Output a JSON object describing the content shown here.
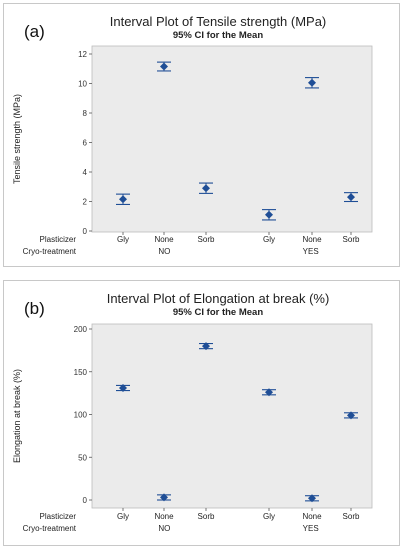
{
  "chart_data": [
    {
      "type": "scatter",
      "panel_label": "(a)",
      "title": "Interval Plot of Tensile strength (MPa)",
      "subtitle": "95% CI for the Mean",
      "ylabel": "Tensile strength (MPa)",
      "ylim": [
        0,
        12
      ],
      "yticks": [
        0,
        2,
        4,
        6,
        8,
        10,
        12
      ],
      "row_labels": [
        "Plasticizer",
        "Cryo-treatment"
      ],
      "categories": [
        "Gly",
        "None",
        "Sorb",
        "Gly",
        "None",
        "Sorb"
      ],
      "groups": [
        {
          "label": "NO",
          "members": [
            0,
            1,
            2
          ]
        },
        {
          "label": "YES",
          "members": [
            3,
            4,
            5
          ]
        }
      ],
      "series": [
        {
          "mean": [
            2.15,
            11.15,
            2.9,
            1.1,
            10.05,
            2.3
          ],
          "lower": [
            1.8,
            10.85,
            2.55,
            0.75,
            9.7,
            2.0
          ],
          "upper": [
            2.5,
            11.45,
            3.25,
            1.45,
            10.4,
            2.6
          ]
        }
      ],
      "grid": false,
      "colors": {
        "marker": "#1f4e96",
        "plot_background": "#ebebeb"
      }
    },
    {
      "type": "scatter",
      "panel_label": "(b)",
      "title": "Interval Plot of Elongation at break (%)",
      "subtitle": "95% CI for the Mean",
      "ylabel": "Elongation at break (%)",
      "ylim": [
        0,
        200
      ],
      "yticks": [
        0,
        50,
        100,
        150,
        200
      ],
      "row_labels": [
        "Plasticizer",
        "Cryo-treatment"
      ],
      "categories": [
        "Gly",
        "None",
        "Sorb",
        "Gly",
        "None",
        "Sorb"
      ],
      "groups": [
        {
          "label": "NO",
          "members": [
            0,
            1,
            2
          ]
        },
        {
          "label": "YES",
          "members": [
            3,
            4,
            5
          ]
        }
      ],
      "series": [
        {
          "mean": [
            131,
            3,
            180,
            126,
            2,
            99
          ],
          "lower": [
            128,
            0,
            177,
            123,
            -1,
            96
          ],
          "upper": [
            134,
            6,
            183,
            129,
            5,
            102
          ]
        }
      ],
      "grid": false,
      "colors": {
        "marker": "#1f4e96",
        "plot_background": "#ebebeb"
      }
    }
  ]
}
